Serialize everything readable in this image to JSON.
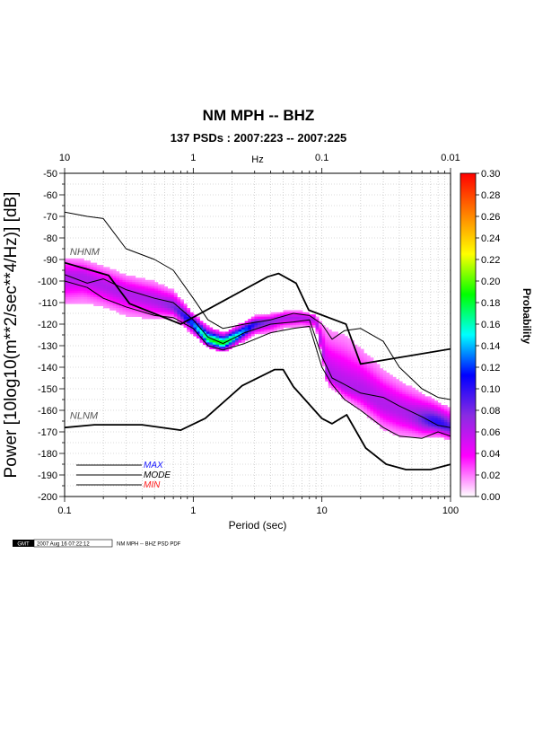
{
  "chart_data": {
    "type": "heatmap",
    "title": "NM MPH -- BHZ",
    "subtitle": "137 PSDs : 2007:223 -- 2007:225",
    "xlabel": "Period (sec)",
    "ylabel": "Power [10log10(m**2/sec**4/Hz)] [dB]",
    "x2label": "Hz",
    "x_scale": "log",
    "xlim": [
      0.1,
      100
    ],
    "ylim": [
      -200,
      -50
    ],
    "x_ticks": [
      0.1,
      1,
      10,
      100
    ],
    "x_tick_labels": [
      "0.1",
      "1",
      "10",
      "100"
    ],
    "x2_ticks": [
      10,
      1,
      0.1,
      0.01
    ],
    "x2_tick_labels": [
      "10",
      "1",
      "0.1",
      "0.01"
    ],
    "y_ticks": [
      -50,
      -60,
      -70,
      -80,
      -90,
      -100,
      -110,
      -120,
      -130,
      -140,
      -150,
      -160,
      -170,
      -180,
      -190,
      -200
    ],
    "y_tick_labels": [
      "-50",
      "-60",
      "-70",
      "-80",
      "-90",
      "-100",
      "-110",
      "-120",
      "-130",
      "-140",
      "-150",
      "-160",
      "-170",
      "-180",
      "-190",
      "-200"
    ],
    "grid": true,
    "colorbar": {
      "label": "Probability",
      "range": [
        0,
        0.3
      ],
      "ticks": [
        "0.00",
        "0.02",
        "0.04",
        "0.06",
        "0.08",
        "0.10",
        "0.12",
        "0.14",
        "0.16",
        "0.18",
        "0.20",
        "0.22",
        "0.24",
        "0.26",
        "0.28",
        "0.30"
      ],
      "colors": [
        "#ffffff",
        "#ff00ff",
        "#8a2be2",
        "#0000ff",
        "#00ffff",
        "#00ff00",
        "#ffff00",
        "#ff8000",
        "#ff0000"
      ]
    },
    "density": {
      "periods": [
        0.1,
        0.14,
        0.2,
        0.3,
        0.5,
        0.7,
        1,
        1.3,
        1.7,
        2,
        3,
        4,
        5,
        7,
        9,
        11,
        15,
        20,
        30,
        40,
        60,
        80,
        100
      ],
      "max_db": [
        -89,
        -90,
        -93,
        -97,
        -100,
        -104,
        -115,
        -121,
        -124,
        -122,
        -116,
        -115,
        -114,
        -114,
        -116,
        -122,
        -125,
        -131,
        -141,
        -146,
        -152,
        -156,
        -159
      ],
      "mode_db": [
        -98,
        -98,
        -102,
        -106,
        -109,
        -112,
        -120,
        -127,
        -129,
        -127,
        -120,
        -119,
        -117,
        -117,
        -118,
        -144,
        -149,
        -151,
        -157,
        -160,
        -164,
        -166,
        -168
      ],
      "min_db": [
        -111,
        -110,
        -112,
        -116,
        -118,
        -117,
        -125,
        -131,
        -133,
        -131,
        -125,
        -124,
        -122,
        -121,
        -122,
        -148,
        -155,
        -160,
        -169,
        -172,
        -173,
        -172,
        -174
      ]
    },
    "series": [
      {
        "name": "NHNM",
        "color": "#000000",
        "periods": [
          0.1,
          0.22,
          0.32,
          0.8,
          3.8,
          4.6,
          6.3,
          7.9,
          15.4,
          20,
          354.8
        ],
        "db": [
          -91.5,
          -97.4,
          -110.5,
          -120,
          -98,
          -96.5,
          -101,
          -113.5,
          -120,
          -138.5,
          -126
        ]
      },
      {
        "name": "NLNM",
        "color": "#000000",
        "periods": [
          0.1,
          0.17,
          0.4,
          0.8,
          1.24,
          2.4,
          4.3,
          5,
          6,
          10,
          12,
          15.6,
          21.9,
          31.6,
          45,
          70,
          101
        ],
        "db": [
          -168,
          -166.7,
          -166.7,
          -169.2,
          -163.7,
          -148.6,
          -141.1,
          -141.1,
          -149,
          -163.8,
          -166.2,
          -162.1,
          -177.5,
          -185,
          -187.5,
          -187.5,
          -185
        ]
      },
      {
        "name": "MAX",
        "color": "#000000",
        "periods": [
          0.1,
          0.15,
          0.2,
          0.3,
          0.5,
          0.7,
          1,
          1.3,
          1.7,
          2.5,
          4,
          6,
          8,
          10,
          12,
          15,
          20,
          30,
          40,
          60,
          80,
          100
        ],
        "db": [
          -68,
          -70,
          -71,
          -85,
          -90,
          -95,
          -108,
          -118,
          -122,
          -120,
          -118,
          -115,
          -116,
          -120,
          -127,
          -123,
          -122,
          -128,
          -140,
          -150,
          -154,
          -155
        ]
      },
      {
        "name": "MODE",
        "color": "#000000",
        "periods": [
          0.1,
          0.15,
          0.2,
          0.3,
          0.5,
          0.7,
          1,
          1.3,
          1.7,
          2.5,
          4,
          6,
          8,
          10,
          12,
          15,
          20,
          30,
          40,
          60,
          80,
          100
        ],
        "db": [
          -97,
          -101,
          -99,
          -104,
          -108,
          -110,
          -118,
          -126,
          -129,
          -124,
          -120,
          -119,
          -118,
          -135,
          -145,
          -148,
          -152,
          -154,
          -158,
          -163,
          -167,
          -168
        ]
      },
      {
        "name": "MIN",
        "color": "#000000",
        "periods": [
          0.1,
          0.15,
          0.2,
          0.3,
          0.5,
          0.7,
          1,
          1.3,
          1.7,
          2.5,
          4,
          6,
          8,
          10,
          12,
          15,
          20,
          30,
          40,
          60,
          80,
          100
        ],
        "db": [
          -100,
          -103,
          -108,
          -112,
          -116,
          -117,
          -122,
          -130,
          -132,
          -129,
          -124,
          -122,
          -121,
          -140,
          -148,
          -155,
          -160,
          -168,
          -172,
          -173,
          -170,
          -172
        ]
      }
    ],
    "annotations": [
      {
        "text": "NHNM",
        "period": 0.11,
        "db": -88
      },
      {
        "text": "NLNM",
        "period": 0.11,
        "db": -164
      }
    ],
    "legend": [
      {
        "label": "MAX",
        "color": "#1a1aff"
      },
      {
        "label": "MODE",
        "color": "#000000"
      },
      {
        "label": "MIN",
        "color": "#ff1a1a"
      }
    ],
    "legend_position": "bottom-left"
  },
  "footer": {
    "logo": "GMT",
    "timestamp": "2007 Aug 16 07:22:12",
    "caption": "NM MPH -- BHZ PSD PDF"
  }
}
